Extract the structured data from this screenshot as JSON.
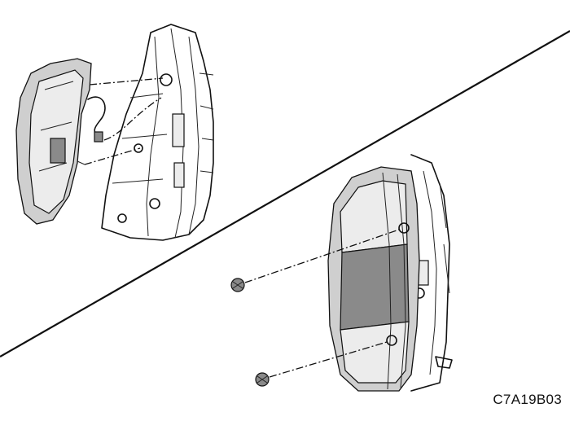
{
  "figure": {
    "reference_code": "C7A19B03"
  }
}
